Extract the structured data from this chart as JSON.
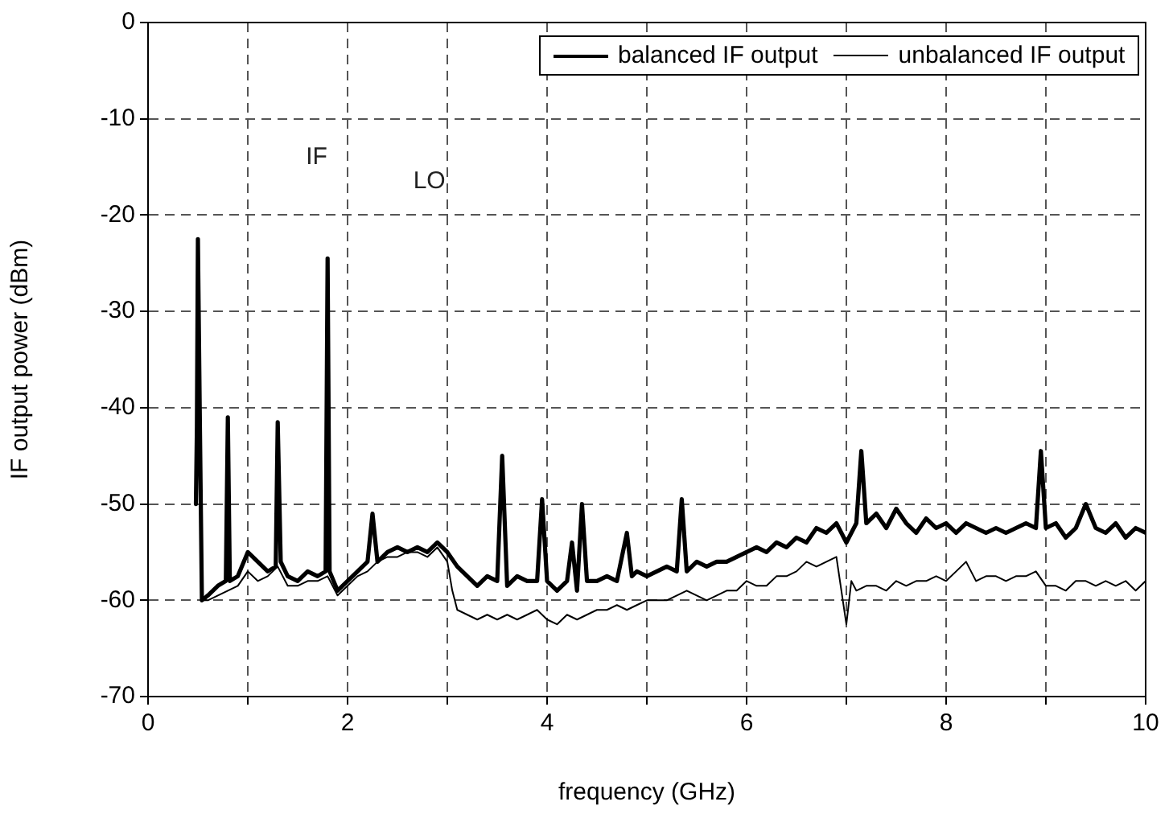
{
  "chart_data": {
    "type": "line",
    "xlabel": "frequency (GHz)",
    "ylabel": "IF output power (dBm)",
    "xlim": [
      0,
      10
    ],
    "ylim": [
      -70,
      0
    ],
    "xticks": [
      0,
      {
        "value": 1,
        "label": null
      },
      2,
      {
        "value": 3,
        "label": null
      },
      4,
      {
        "value": 5,
        "label": null
      },
      6,
      {
        "value": 7,
        "label": null
      },
      8,
      {
        "value": 9,
        "label": null
      },
      10
    ],
    "yticks": [
      -70,
      -60,
      -50,
      -40,
      -30,
      -20,
      -10,
      0
    ],
    "grid": true,
    "legend": "top right",
    "marker": "none",
    "line_style": "solid",
    "annotations": [
      "IF",
      "LO"
    ],
    "series": [
      {
        "name": "balanced IF output",
        "color": "#000000",
        "x": [
          0.48,
          0.49,
          0.5,
          0.52,
          0.54,
          0.6,
          0.7,
          0.78,
          0.8,
          0.82,
          0.9,
          1.0,
          1.1,
          1.2,
          1.28,
          1.3,
          1.33,
          1.4,
          1.5,
          1.6,
          1.7,
          1.78,
          1.8,
          1.82,
          1.9,
          2.0,
          2.1,
          2.2,
          2.25,
          2.3,
          2.4,
          2.5,
          2.6,
          2.7,
          2.8,
          2.9,
          3.0,
          3.1,
          3.2,
          3.3,
          3.4,
          3.5,
          3.55,
          3.6,
          3.7,
          3.8,
          3.9,
          3.95,
          4.0,
          4.1,
          4.2,
          4.25,
          4.3,
          4.35,
          4.4,
          4.5,
          4.6,
          4.7,
          4.8,
          4.85,
          4.9,
          5.0,
          5.1,
          5.2,
          5.3,
          5.35,
          5.4,
          5.5,
          5.6,
          5.7,
          5.8,
          5.9,
          6.0,
          6.1,
          6.2,
          6.3,
          6.4,
          6.5,
          6.6,
          6.7,
          6.8,
          6.9,
          7.0,
          7.1,
          7.15,
          7.2,
          7.3,
          7.4,
          7.5,
          7.6,
          7.7,
          7.8,
          7.9,
          8.0,
          8.1,
          8.2,
          8.3,
          8.4,
          8.5,
          8.6,
          8.7,
          8.8,
          8.9,
          8.95,
          9.0,
          9.1,
          9.2,
          9.3,
          9.4,
          9.5,
          9.6,
          9.7,
          9.8,
          9.9,
          10.0
        ],
        "values": [
          -50,
          -42,
          -22.5,
          -42,
          -60,
          -59.5,
          -58.5,
          -58,
          -41,
          -58,
          -57.5,
          -55,
          -56,
          -57,
          -56.5,
          -41.5,
          -56,
          -57.5,
          -58,
          -57,
          -57.5,
          -57,
          -24.5,
          -57,
          -59,
          -58,
          -57,
          -56,
          -51,
          -56,
          -55,
          -54.5,
          -55,
          -54.5,
          -55,
          -54,
          -55,
          -56.5,
          -57.5,
          -58.5,
          -57.5,
          -58,
          -45,
          -58.5,
          -57.5,
          -58,
          -58,
          -49.5,
          -58,
          -59,
          -58,
          -54,
          -59,
          -50,
          -58,
          -58,
          -57.5,
          -58,
          -53,
          -57.5,
          -57,
          -57.5,
          -57,
          -56.5,
          -57,
          -49.5,
          -57,
          -56,
          -56.5,
          -56,
          -56,
          -55.5,
          -55,
          -54.5,
          -55,
          -54,
          -54.5,
          -53.5,
          -54,
          -52.5,
          -53,
          -52,
          -54,
          -52,
          -44.5,
          -52,
          -51,
          -52.5,
          -50.5,
          -52,
          -53,
          -51.5,
          -52.5,
          -52,
          -53,
          -52,
          -52.5,
          -53,
          -52.5,
          -53,
          -52.5,
          -52,
          -52.5,
          -44.5,
          -52.5,
          -52,
          -53.5,
          -52.5,
          -50,
          -52.5,
          -53,
          -52,
          -53.5,
          -52.5,
          -53
        ]
      },
      {
        "name": "unbalanced IF output",
        "color": "#000000",
        "x": [
          0.54,
          0.6,
          0.7,
          0.8,
          0.9,
          1.0,
          1.1,
          1.2,
          1.3,
          1.4,
          1.5,
          1.6,
          1.7,
          1.8,
          1.9,
          2.0,
          2.1,
          2.2,
          2.3,
          2.4,
          2.5,
          2.6,
          2.7,
          2.8,
          2.9,
          3.0,
          3.05,
          3.1,
          3.2,
          3.3,
          3.4,
          3.5,
          3.6,
          3.7,
          3.8,
          3.9,
          4.0,
          4.1,
          4.2,
          4.3,
          4.4,
          4.5,
          4.6,
          4.7,
          4.8,
          4.9,
          5.0,
          5.1,
          5.2,
          5.3,
          5.4,
          5.5,
          5.6,
          5.7,
          5.8,
          5.9,
          6.0,
          6.1,
          6.2,
          6.3,
          6.4,
          6.5,
          6.6,
          6.7,
          6.8,
          6.9,
          7.0,
          7.05,
          7.1,
          7.2,
          7.3,
          7.4,
          7.5,
          7.6,
          7.7,
          7.8,
          7.9,
          8.0,
          8.1,
          8.2,
          8.3,
          8.4,
          8.5,
          8.6,
          8.7,
          8.8,
          8.9,
          9.0,
          9.1,
          9.2,
          9.3,
          9.4,
          9.5,
          9.6,
          9.7,
          9.8,
          9.9,
          10.0
        ],
        "values": [
          -60,
          -60,
          -59.5,
          -59,
          -58.5,
          -57,
          -58,
          -57.5,
          -56.5,
          -58.5,
          -58.5,
          -58,
          -58,
          -57.5,
          -59.5,
          -58.5,
          -57.5,
          -57,
          -56,
          -55.5,
          -55.5,
          -55,
          -55,
          -55.5,
          -54.5,
          -56,
          -59,
          -61,
          -61.5,
          -62,
          -61.5,
          -62,
          -61.5,
          -62,
          -61.5,
          -61,
          -62,
          -62.5,
          -61.5,
          -62,
          -61.5,
          -61,
          -61,
          -60.5,
          -61,
          -60.5,
          -60,
          -60,
          -60,
          -59.5,
          -59,
          -59.5,
          -60,
          -59.5,
          -59,
          -59,
          -58,
          -58.5,
          -58.5,
          -57.5,
          -57.5,
          -57,
          -56,
          -56.5,
          -56,
          -55.5,
          -62.5,
          -58,
          -59,
          -58.5,
          -58.5,
          -59,
          -58,
          -58.5,
          -58,
          -58,
          -57.5,
          -58,
          -57,
          -56,
          -58,
          -57.5,
          -57.5,
          -58,
          -57.5,
          -57.5,
          -57,
          -58.5,
          -58.5,
          -59,
          -58,
          -58,
          -58.5,
          -58,
          -58.5,
          -58,
          -59,
          -58
        ]
      }
    ]
  }
}
